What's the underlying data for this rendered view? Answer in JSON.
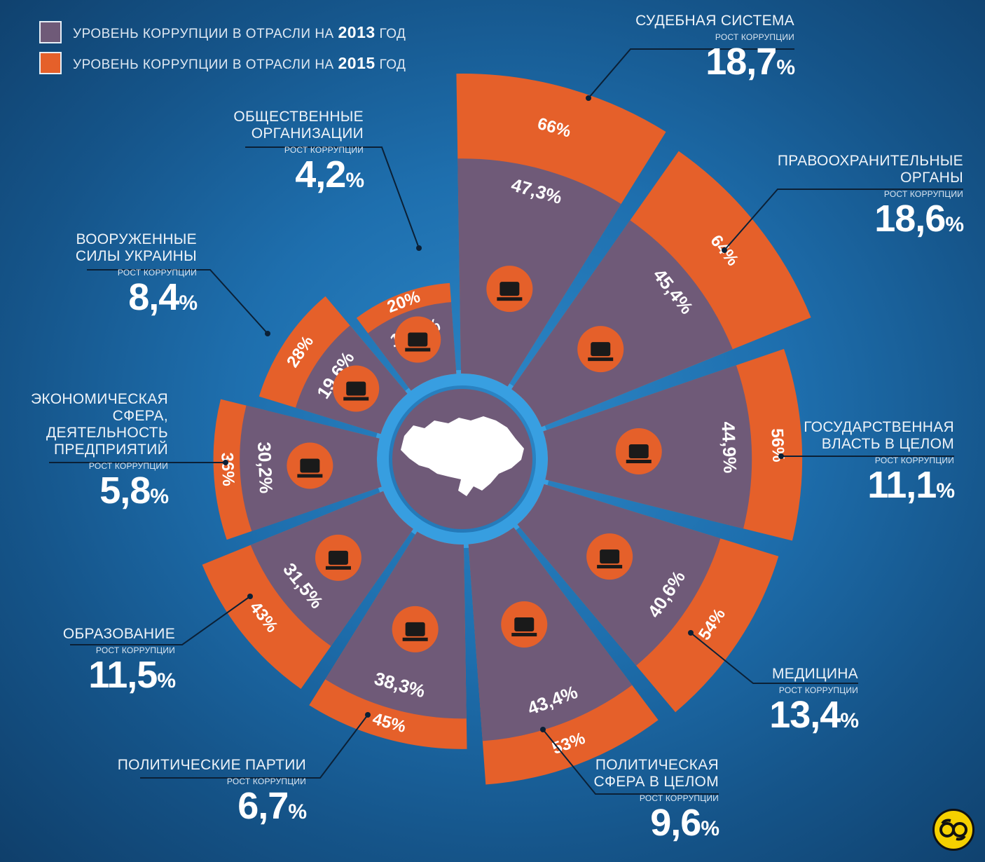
{
  "legend": {
    "items": [
      {
        "text": "УРОВЕНЬ КОРРУПЦИИ В ОТРАСЛИ НА",
        "year": "2013",
        "suffix": "ГОД",
        "color": "#6f5a78"
      },
      {
        "text": "УРОВЕНЬ КОРРУПЦИИ В ОТРАСЛИ НА",
        "year": "2015",
        "suffix": "ГОД",
        "color": "#e5602a"
      }
    ]
  },
  "growth_caption": "РОСТ КОРРУПЦИИ",
  "colors": {
    "background": "#1e6fae",
    "series_2013": "#6f5a78",
    "series_2015": "#e5602a",
    "center": "#6f5a78",
    "ring": "#3aa2e4"
  },
  "chart_data": {
    "type": "radial-bar",
    "unit": "%",
    "series": [
      {
        "name": "2013",
        "values": [
          47.3,
          45.4,
          44.9,
          40.6,
          43.4,
          38.3,
          31.5,
          30.2,
          19.6,
          15.8
        ]
      },
      {
        "name": "2015",
        "values": [
          66,
          64,
          56,
          54,
          53,
          45,
          43,
          36,
          28,
          20
        ]
      }
    ],
    "sectors": [
      {
        "name": "СУДЕБНАЯ СИСТЕМА",
        "v2013": "47,3",
        "v2015": "66",
        "growth": "18,7",
        "icon": "gavel-icon"
      },
      {
        "name": "ПРАВООХРАНИТЕЛЬНЫЕ\nОРГАНЫ",
        "v2013": "45,4",
        "v2015": "64",
        "growth": "18,6",
        "icon": "police-officer-icon"
      },
      {
        "name": "ГОСУДАРСТВЕННАЯ\nВЛАСТЬ В ЦЕЛОМ",
        "v2013": "44,9",
        "v2015": "56",
        "growth": "11,1",
        "icon": "government-building-icon"
      },
      {
        "name": "МЕДИЦИНА",
        "v2013": "40,6",
        "v2015": "54",
        "growth": "13,4",
        "icon": "medicine-caduceus-icon"
      },
      {
        "name": "ПОЛИТИЧЕСКАЯ\nСФЕРА В ЦЕЛОМ",
        "v2013": "43,4",
        "v2015": "53",
        "growth": "9,6",
        "icon": "speaker-podium-icon"
      },
      {
        "name": "ПОЛИТИЧЕСКИЕ ПАРТИИ",
        "v2013": "38,3",
        "v2015": "45",
        "growth": "6,7",
        "icon": "party-group-icon"
      },
      {
        "name": "ОБРАЗОВАНИЕ",
        "v2013": "31,5",
        "v2015": "43",
        "growth": "11,5",
        "icon": "graduation-cap-icon"
      },
      {
        "name": "ЭКОНОМИЧЕСКАЯ\nСФЕРА,\nДЕЯТЕЛЬНОСТЬ\nПРЕДПРИЯТИЙ",
        "v2013": "30,2",
        "v2015": "36",
        "growth": "5,8",
        "icon": "money-hand-icon"
      },
      {
        "name": "ВООРУЖЕННЫЕ\nСИЛЫ УКРАИНЫ",
        "v2013": "19,6",
        "v2015": "28",
        "growth": "8,4",
        "icon": "tank-icon"
      },
      {
        "name": "ОБЩЕСТВЕННЫЕ\nОРГАНИЗАЦИИ",
        "v2013": "15,8",
        "v2015": "20",
        "growth": "4,2",
        "icon": "people-group-icon"
      }
    ]
  },
  "center_icon": "ukraine-map-icon",
  "badge_icon": "yellow-logo-icon"
}
